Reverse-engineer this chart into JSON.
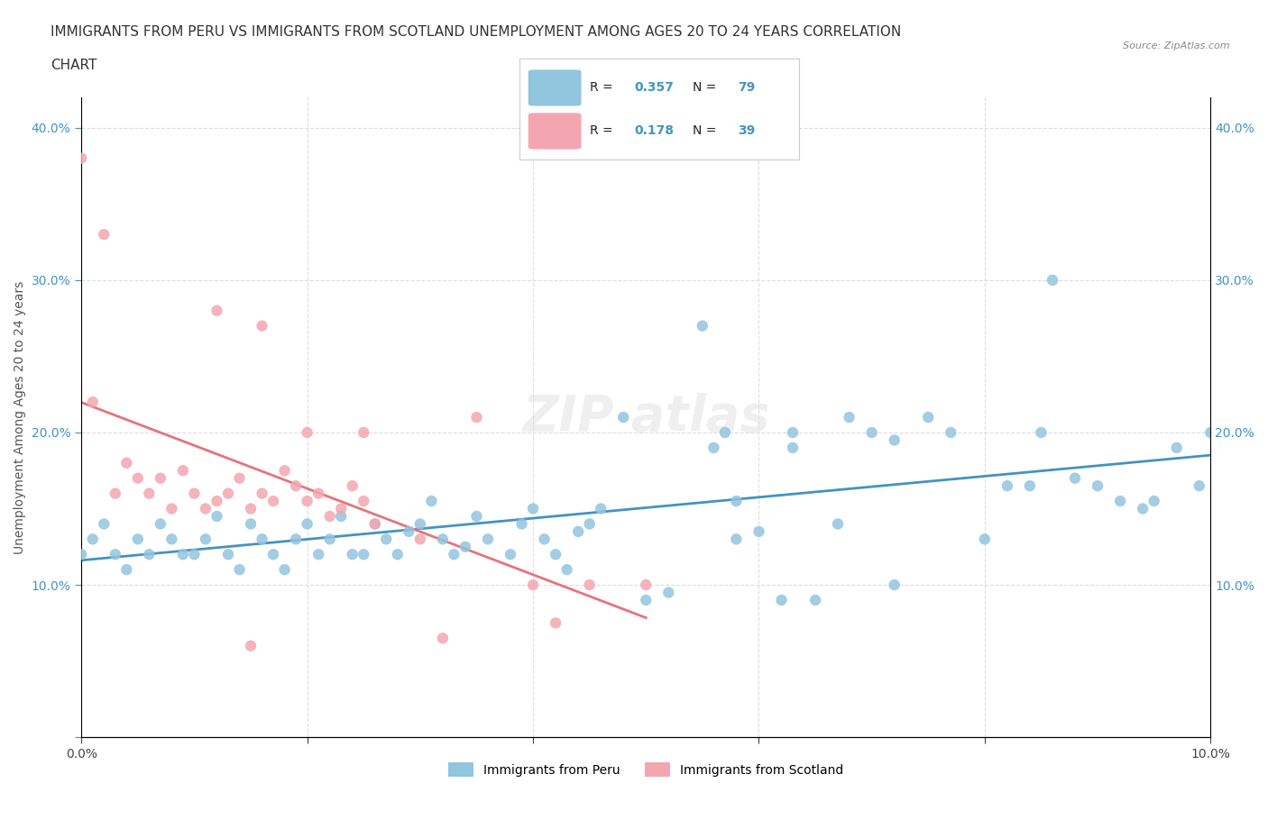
{
  "title_line1": "IMMIGRANTS FROM PERU VS IMMIGRANTS FROM SCOTLAND UNEMPLOYMENT AMONG AGES 20 TO 24 YEARS CORRELATION",
  "title_line2": "CHART",
  "source": "Source: ZipAtlas.com",
  "ylabel": "Unemployment Among Ages 20 to 24 years",
  "xlabel": "",
  "legend_label1": "Immigrants from Peru",
  "legend_label2": "Immigrants from Scotland",
  "R1": 0.357,
  "N1": 79,
  "R2": 0.178,
  "N2": 39,
  "color1": "#92c5de",
  "color2": "#f4a6b0",
  "line_color1": "#4393c3",
  "line_color2": "#e8727a",
  "trendline1_color": "#4393c3",
  "trendline2_color": "#e8727a",
  "xlim": [
    0.0,
    0.1
  ],
  "ylim": [
    0.0,
    0.42
  ],
  "xticks": [
    0.0,
    0.02,
    0.04,
    0.06,
    0.08,
    0.1
  ],
  "xtick_labels": [
    "0.0%",
    "",
    "",
    "",
    "",
    "10.0%"
  ],
  "yticks": [
    0.0,
    0.1,
    0.2,
    0.3,
    0.4
  ],
  "ytick_labels": [
    "",
    "10.0%",
    "20.0%",
    "30.0%",
    "40.0%"
  ],
  "peru_x": [
    0.0,
    0.001,
    0.002,
    0.003,
    0.004,
    0.005,
    0.006,
    0.007,
    0.008,
    0.009,
    0.01,
    0.011,
    0.012,
    0.013,
    0.014,
    0.015,
    0.016,
    0.017,
    0.018,
    0.019,
    0.02,
    0.021,
    0.022,
    0.023,
    0.024,
    0.025,
    0.026,
    0.027,
    0.028,
    0.029,
    0.03,
    0.031,
    0.032,
    0.033,
    0.034,
    0.035,
    0.036,
    0.038,
    0.039,
    0.04,
    0.041,
    0.042,
    0.043,
    0.044,
    0.045,
    0.046,
    0.048,
    0.05,
    0.052,
    0.055,
    0.056,
    0.057,
    0.058,
    0.06,
    0.062,
    0.063,
    0.065,
    0.067,
    0.068,
    0.07,
    0.072,
    0.075,
    0.077,
    0.08,
    0.082,
    0.084,
    0.086,
    0.088,
    0.09,
    0.092,
    0.094,
    0.095,
    0.097,
    0.099,
    0.1,
    0.063,
    0.058,
    0.072,
    0.085
  ],
  "peru_y": [
    0.12,
    0.13,
    0.14,
    0.12,
    0.11,
    0.13,
    0.12,
    0.14,
    0.13,
    0.12,
    0.12,
    0.13,
    0.145,
    0.12,
    0.11,
    0.14,
    0.13,
    0.12,
    0.11,
    0.13,
    0.14,
    0.12,
    0.13,
    0.145,
    0.12,
    0.12,
    0.14,
    0.13,
    0.12,
    0.135,
    0.14,
    0.155,
    0.13,
    0.12,
    0.125,
    0.145,
    0.13,
    0.12,
    0.14,
    0.15,
    0.13,
    0.12,
    0.11,
    0.135,
    0.14,
    0.15,
    0.21,
    0.09,
    0.095,
    0.27,
    0.19,
    0.2,
    0.13,
    0.135,
    0.09,
    0.2,
    0.09,
    0.14,
    0.21,
    0.2,
    0.195,
    0.21,
    0.2,
    0.13,
    0.165,
    0.165,
    0.3,
    0.17,
    0.165,
    0.155,
    0.15,
    0.155,
    0.19,
    0.165,
    0.2,
    0.19,
    0.155,
    0.1,
    0.2
  ],
  "scotland_x": [
    0.0,
    0.001,
    0.002,
    0.003,
    0.004,
    0.005,
    0.006,
    0.007,
    0.008,
    0.009,
    0.01,
    0.011,
    0.012,
    0.013,
    0.014,
    0.015,
    0.016,
    0.017,
    0.018,
    0.019,
    0.02,
    0.021,
    0.022,
    0.023,
    0.024,
    0.025,
    0.026,
    0.03,
    0.032,
    0.035,
    0.04,
    0.042,
    0.045,
    0.05,
    0.012,
    0.016,
    0.02,
    0.025,
    0.015
  ],
  "scotland_y": [
    0.38,
    0.22,
    0.33,
    0.16,
    0.18,
    0.17,
    0.16,
    0.17,
    0.15,
    0.175,
    0.16,
    0.15,
    0.155,
    0.16,
    0.17,
    0.15,
    0.16,
    0.155,
    0.175,
    0.165,
    0.155,
    0.16,
    0.145,
    0.15,
    0.165,
    0.155,
    0.14,
    0.13,
    0.065,
    0.21,
    0.1,
    0.075,
    0.1,
    0.1,
    0.28,
    0.27,
    0.2,
    0.2,
    0.06
  ],
  "watermark": "ZIPAtlas",
  "watermark_color": "#cccccc",
  "background_color": "#ffffff",
  "grid_color": "#dddddd",
  "title_fontsize": 11,
  "axis_label_fontsize": 10,
  "tick_fontsize": 10
}
